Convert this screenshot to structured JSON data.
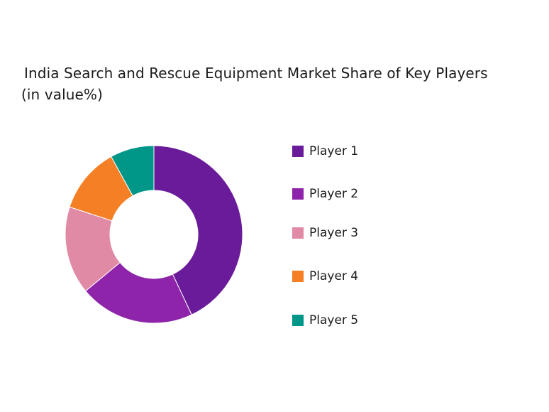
{
  "chart_data": {
    "type": "pie",
    "title": "India Search and Rescue Equipment Market Share of Key Players",
    "subtitle": "(in value%)",
    "categories": [
      "Player 1",
      "Player 2",
      "Player 3",
      "Player 4",
      "Player 5"
    ],
    "values": [
      43,
      21,
      16,
      12,
      8
    ],
    "colors": [
      "#6a1b9a",
      "#8e24aa",
      "#e08aa6",
      "#f57f25",
      "#009688"
    ],
    "donut": true,
    "legend_position": "right"
  }
}
